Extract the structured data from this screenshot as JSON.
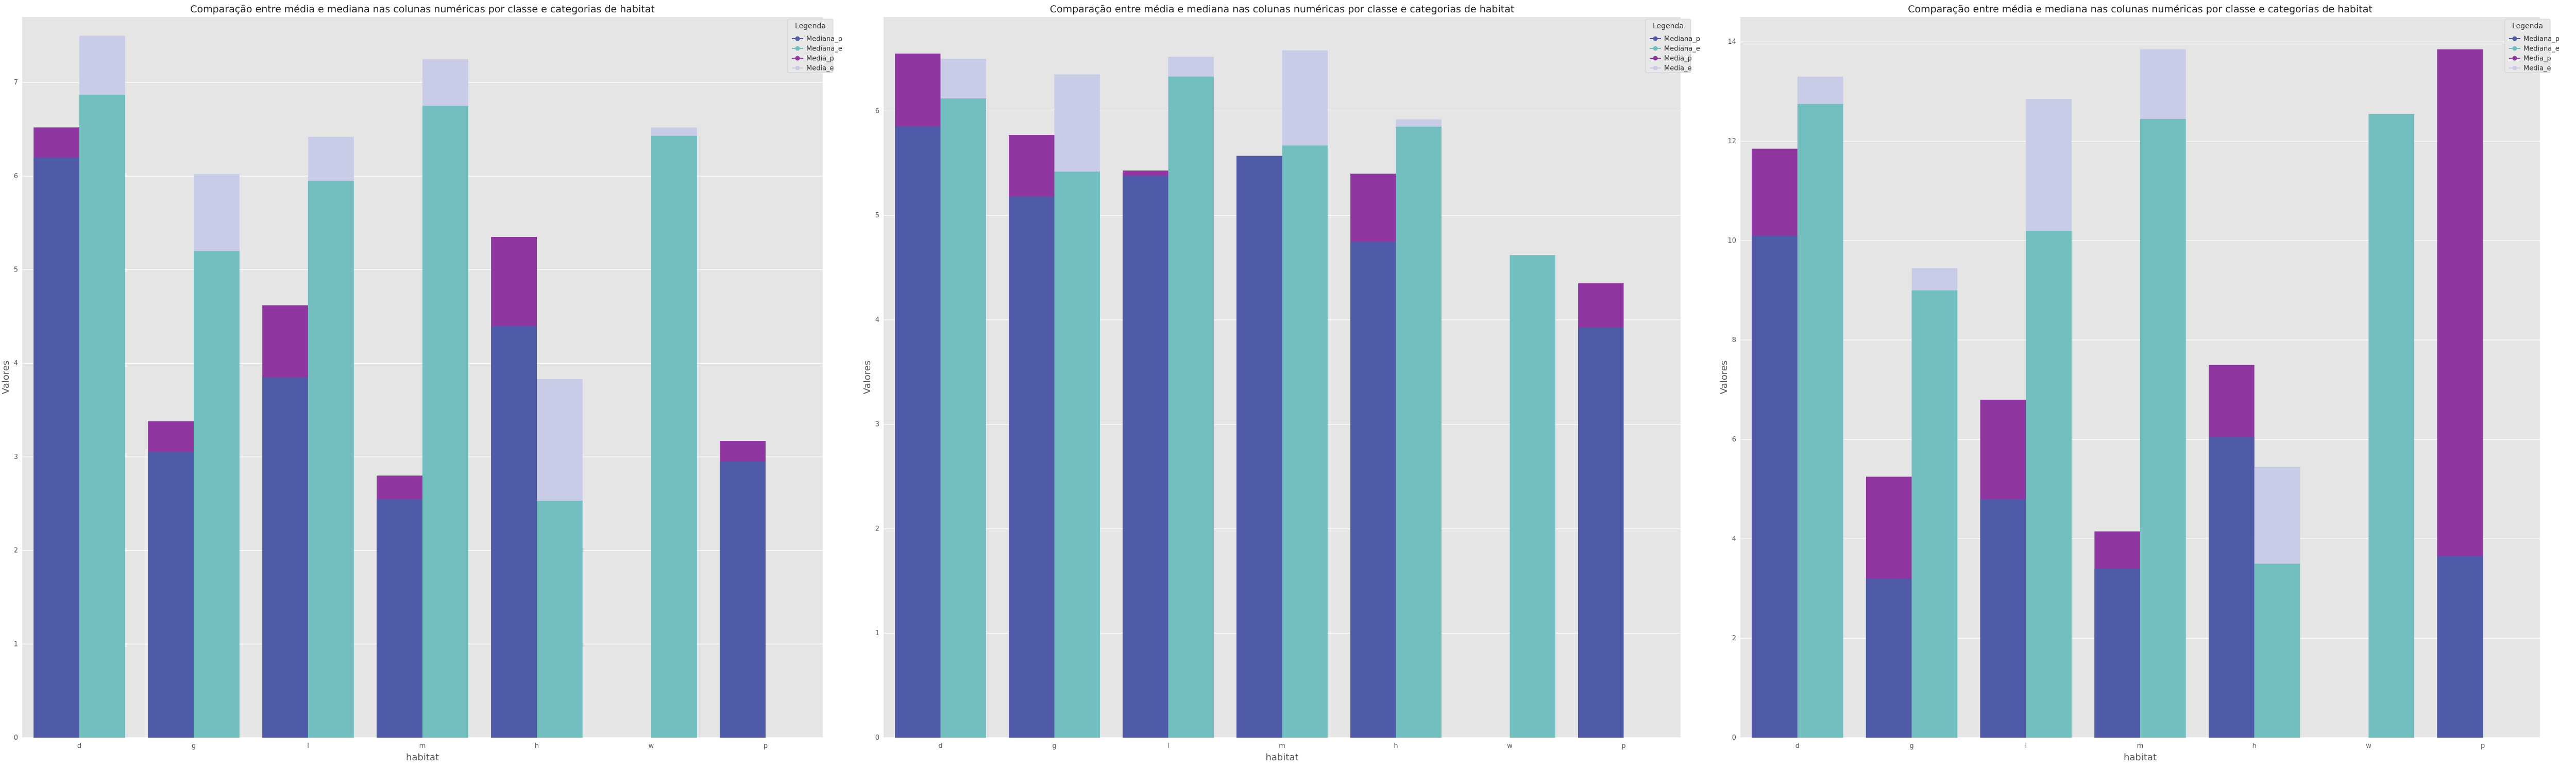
{
  "colors": {
    "plot_bg": "#e5e5e5",
    "grid": "#ffffff",
    "Mediana_p": "#4f5aa8",
    "Media_p": "#9036a0",
    "Mediana_e": "#73bfc0",
    "Media_e": "#c9cce6"
  },
  "chart_data": [
    {
      "type": "bar",
      "title": "Comparação entre média e mediana nas colunas numéricas por classe e categorias de habitat",
      "xlabel": "habitat",
      "ylabel": "Valores",
      "categories": [
        "d",
        "g",
        "l",
        "m",
        "h",
        "w",
        "p"
      ],
      "ylim": [
        0,
        7.7
      ],
      "yticks": [
        0,
        1,
        2,
        3,
        4,
        5,
        6,
        7
      ],
      "grid": true,
      "legend": {
        "title": "Legenda",
        "placement": "top-right",
        "entries": [
          "Mediana_p",
          "Mediana_e",
          "Media_p",
          "Media_e"
        ]
      },
      "series": [
        {
          "name": "Mediana_p",
          "values": [
            6.2,
            3.05,
            3.85,
            2.55,
            4.4,
            null,
            2.95
          ]
        },
        {
          "name": "Media_p",
          "values": [
            6.52,
            3.38,
            4.62,
            2.8,
            5.35,
            null,
            3.17
          ]
        },
        {
          "name": "Mediana_e",
          "values": [
            6.87,
            5.2,
            5.95,
            6.75,
            2.53,
            6.43,
            null
          ]
        },
        {
          "name": "Media_e",
          "values": [
            7.5,
            6.02,
            6.42,
            7.25,
            3.83,
            6.52,
            null
          ]
        }
      ]
    },
    {
      "type": "bar",
      "title": "Comparação entre média e mediana nas colunas numéricas por classe e categorias de habitat",
      "xlabel": "habitat",
      "ylabel": "Valores",
      "categories": [
        "d",
        "g",
        "l",
        "m",
        "h",
        "w",
        "p"
      ],
      "ylim": [
        0,
        6.9
      ],
      "yticks": [
        0,
        1,
        2,
        3,
        4,
        5,
        6
      ],
      "grid": true,
      "legend": {
        "title": "Legenda",
        "placement": "top-right",
        "entries": [
          "Mediana_p",
          "Mediana_e",
          "Media_p",
          "Media_e"
        ]
      },
      "series": [
        {
          "name": "Mediana_p",
          "values": [
            5.85,
            5.18,
            5.38,
            5.57,
            4.75,
            null,
            3.93
          ]
        },
        {
          "name": "Media_p",
          "values": [
            6.55,
            5.77,
            5.43,
            5.57,
            5.4,
            null,
            4.35
          ]
        },
        {
          "name": "Mediana_e",
          "values": [
            6.12,
            5.42,
            6.33,
            5.67,
            5.85,
            4.62,
            null
          ]
        },
        {
          "name": "Media_e",
          "values": [
            6.5,
            6.35,
            6.52,
            6.58,
            5.92,
            4.62,
            null
          ]
        }
      ]
    },
    {
      "type": "bar",
      "title": "Comparação entre média e mediana nas colunas numéricas por classe e categorias de habitat",
      "xlabel": "habitat",
      "ylabel": "Valores",
      "categories": [
        "d",
        "g",
        "l",
        "m",
        "h",
        "w",
        "p"
      ],
      "ylim": [
        0,
        14.5
      ],
      "yticks": [
        0,
        2,
        4,
        6,
        8,
        10,
        12,
        14
      ],
      "grid": true,
      "legend": {
        "title": "Legenda",
        "placement": "top-right",
        "entries": [
          "Mediana_p",
          "Mediana_e",
          "Media_p",
          "Media_e"
        ]
      },
      "series": [
        {
          "name": "Mediana_p",
          "values": [
            10.1,
            3.2,
            4.8,
            3.4,
            6.05,
            null,
            3.65
          ]
        },
        {
          "name": "Media_p",
          "values": [
            11.85,
            5.25,
            6.8,
            4.15,
            7.5,
            null,
            13.85
          ]
        },
        {
          "name": "Mediana_e",
          "values": [
            12.75,
            9.0,
            10.2,
            12.45,
            3.5,
            12.55,
            null
          ]
        },
        {
          "name": "Media_e",
          "values": [
            13.3,
            9.45,
            12.85,
            13.85,
            5.45,
            12.55,
            null
          ]
        }
      ]
    }
  ]
}
